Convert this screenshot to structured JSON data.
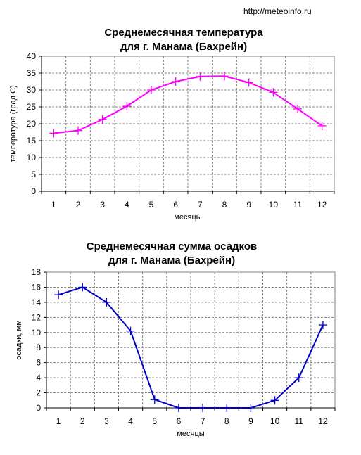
{
  "source": "http://meteoinfo.ru",
  "chart_data": [
    {
      "type": "line",
      "title": [
        "Среднемесячная температура",
        "для г. Манама (Бахрейн)"
      ],
      "xlabel": "месяцы",
      "ylabel": "температура (град С)",
      "categories": [
        "1",
        "2",
        "3",
        "4",
        "5",
        "6",
        "7",
        "8",
        "9",
        "10",
        "11",
        "12"
      ],
      "ylim": [
        0,
        40
      ],
      "yticks": [
        0,
        5,
        10,
        15,
        20,
        25,
        30,
        35,
        40
      ],
      "grid": true,
      "legend": "none",
      "series": [
        {
          "values": [
            17.2,
            18.0,
            21.3,
            25.2,
            30.0,
            32.5,
            34.0,
            34.1,
            32.2,
            29.3,
            24.4,
            19.4
          ],
          "color": "#ff00ff"
        }
      ]
    },
    {
      "type": "line",
      "title": [
        "Среднемесячная сумма осадков",
        "для г. Манама (Бахрейн)"
      ],
      "xlabel": "месяцы",
      "ylabel": "осадки, мм",
      "categories": [
        "1",
        "2",
        "3",
        "4",
        "5",
        "6",
        "7",
        "8",
        "9",
        "10",
        "11",
        "12"
      ],
      "ylim": [
        0,
        18
      ],
      "yticks": [
        0,
        2,
        4,
        6,
        8,
        10,
        12,
        14,
        16,
        18
      ],
      "grid": true,
      "legend": "none",
      "series": [
        {
          "values": [
            15,
            16,
            14,
            10.2,
            1.1,
            0,
            0,
            0,
            0,
            1,
            4,
            11
          ],
          "color": "#0000cc"
        }
      ]
    }
  ]
}
